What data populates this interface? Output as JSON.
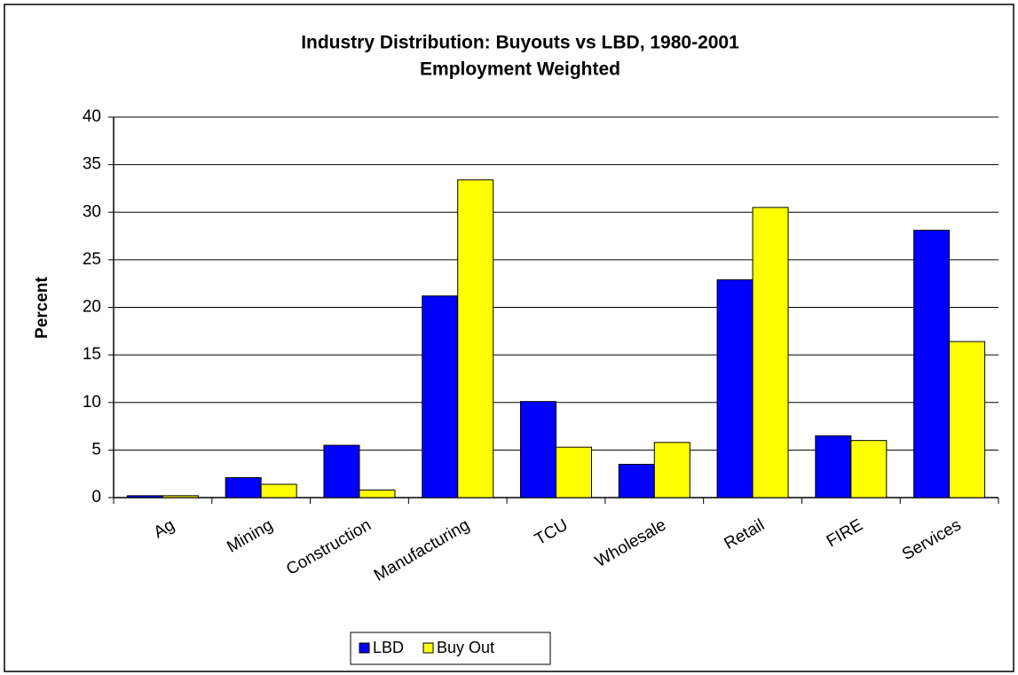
{
  "chart_data": {
    "type": "bar",
    "title": "Industry Distribution: Buyouts vs LBD, 1980-2001",
    "subtitle": "Employment Weighted",
    "y_label": "Percent",
    "categories": [
      "Ag",
      "Mining",
      "Construction",
      "Manufacturing",
      "TCU",
      "Wholesale",
      "Retail",
      "FIRE",
      "Services"
    ],
    "series": [
      {
        "name": "LBD",
        "color": "#0000ff",
        "values": [
          0.2,
          2.1,
          5.5,
          21.2,
          10.1,
          3.5,
          22.9,
          6.5,
          28.1
        ]
      },
      {
        "name": "Buy Out",
        "color": "#ffff00",
        "values": [
          0.2,
          1.4,
          0.8,
          33.4,
          5.3,
          5.8,
          30.5,
          6.0,
          16.4
        ]
      }
    ],
    "ylim": [
      0,
      40
    ],
    "yticks": [
      0,
      5,
      10,
      15,
      20,
      25,
      30,
      35,
      40
    ],
    "grid": true,
    "legend": "bottom"
  }
}
